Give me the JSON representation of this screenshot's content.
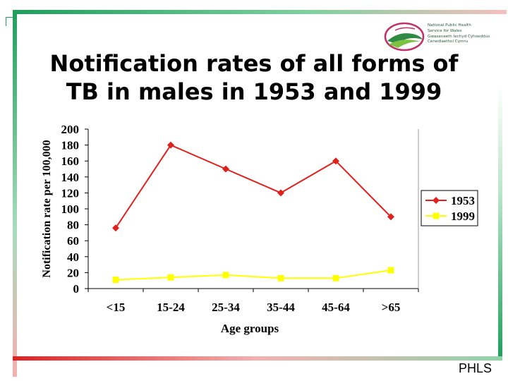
{
  "slide": {
    "title_line1": "Notification rates of all forms of",
    "title_line2": "TB in males in 1953 and 1999",
    "footer": "PHLS",
    "logo_lines": [
      "National Public Health",
      "Service for Wales",
      "Gwasanaeth Iechyd Cyhoeddus",
      "Cenedlaethol Cymru"
    ]
  },
  "colors": {
    "series_1953": "#e0201c",
    "series_1999": "#ffff00",
    "border_green": "#1f9e5a",
    "border_red": "#e02020"
  },
  "chart_data": {
    "type": "line",
    "title": "",
    "xlabel": "Age groups",
    "ylabel": "Notification rate per 100,000",
    "categories": [
      "<15",
      "15-24",
      "25-34",
      "35-44",
      "45-64",
      ">65"
    ],
    "ylim": [
      0,
      200
    ],
    "yticks": [
      0,
      20,
      40,
      60,
      80,
      100,
      120,
      140,
      160,
      180,
      200
    ],
    "grid": false,
    "legend_position": "right",
    "series": [
      {
        "name": "1953",
        "values": [
          76,
          180,
          150,
          120,
          160,
          90
        ],
        "color": "#e0201c",
        "marker": "diamond"
      },
      {
        "name": "1999",
        "values": [
          11,
          14,
          17,
          13,
          13,
          23
        ],
        "color": "#ffff00",
        "marker": "square"
      }
    ]
  }
}
